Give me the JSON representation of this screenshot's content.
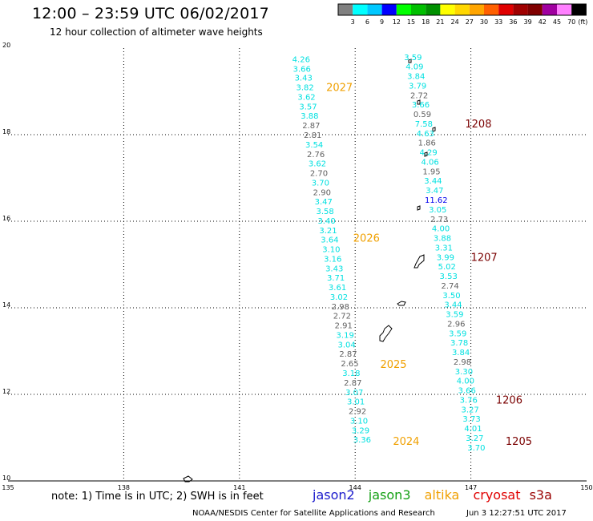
{
  "title": "12:00 – 23:59 UTC 06/02/2017",
  "subtitle": "12 hour collection of altimeter wave heights",
  "note": "note:  1) Time is in UTC; 2) SWH is in feet",
  "credit": "NOAA/NESDIS Center for Satellite Applications and Research",
  "generated": "Jun  3 12:27:51 UTC 2017",
  "satellites": [
    {
      "name": "jason2",
      "color": "#1a1acc"
    },
    {
      "name": "jason3",
      "color": "#14a014"
    },
    {
      "name": "altika",
      "color": "#f0a000"
    },
    {
      "name": "cryosat",
      "color": "#e00000"
    },
    {
      "name": "s3a",
      "color": "#990000"
    }
  ],
  "color_scale": {
    "unit": "(ft)",
    "labels": [
      "3",
      "6",
      "9",
      "12",
      "15",
      "18",
      "21",
      "24",
      "27",
      "30",
      "33",
      "36",
      "39",
      "42",
      "45",
      "70"
    ],
    "colors": [
      "#808080",
      "#00ffff",
      "#00c8ff",
      "#0000ff",
      "#00ff00",
      "#00c000",
      "#009000",
      "#ffff00",
      "#ffd700",
      "#ffa500",
      "#ff6000",
      "#e00000",
      "#a00000",
      "#800000",
      "#a000a0",
      "#ff80ff",
      "#000000"
    ]
  },
  "axes": {
    "lon_ticks": [
      "135",
      "138",
      "141",
      "144",
      "147",
      "150"
    ],
    "lat_ticks": [
      "20",
      "18",
      "16",
      "14",
      "12",
      "10"
    ],
    "lon_range": [
      135,
      150
    ],
    "lat_range": [
      10,
      20
    ]
  },
  "tracks": [
    {
      "id": "track-west",
      "points": [
        {
          "lon": 142.6,
          "lat": 19.75,
          "v": "4.26",
          "c": "#00e0e0"
        },
        {
          "lon": 142.62,
          "lat": 19.53,
          "v": "3.66",
          "c": "#00e0e0"
        },
        {
          "lon": 142.66,
          "lat": 19.32,
          "v": "3.43",
          "c": "#00e0e0"
        },
        {
          "lon": 142.7,
          "lat": 19.1,
          "v": "3.82",
          "c": "#00e0e0"
        },
        {
          "lon": 142.74,
          "lat": 18.88,
          "v": "3.62",
          "c": "#00e0e0"
        },
        {
          "lon": 142.78,
          "lat": 18.66,
          "v": "3.57",
          "c": "#00e0e0"
        },
        {
          "lon": 142.82,
          "lat": 18.44,
          "v": "3.88",
          "c": "#00e0e0"
        },
        {
          "lon": 142.86,
          "lat": 18.22,
          "v": "2.87",
          "c": "#606060"
        },
        {
          "lon": 142.9,
          "lat": 18.0,
          "v": "2.81",
          "c": "#606060"
        },
        {
          "lon": 142.94,
          "lat": 17.78,
          "v": "3.54",
          "c": "#00e0e0"
        },
        {
          "lon": 142.98,
          "lat": 17.56,
          "v": "2.76",
          "c": "#606060"
        },
        {
          "lon": 143.02,
          "lat": 17.34,
          "v": "3.62",
          "c": "#00e0e0"
        },
        {
          "lon": 143.06,
          "lat": 17.12,
          "v": "2.70",
          "c": "#606060"
        },
        {
          "lon": 143.1,
          "lat": 16.9,
          "v": "3.70",
          "c": "#00e0e0"
        },
        {
          "lon": 143.14,
          "lat": 16.68,
          "v": "2.90",
          "c": "#606060"
        },
        {
          "lon": 143.18,
          "lat": 16.46,
          "v": "3.47",
          "c": "#00e0e0"
        },
        {
          "lon": 143.22,
          "lat": 16.24,
          "v": "3.58",
          "c": "#00e0e0"
        },
        {
          "lon": 143.26,
          "lat": 16.02,
          "v": "3.40",
          "c": "#00e0e0"
        },
        {
          "lon": 143.3,
          "lat": 15.8,
          "v": "3.21",
          "c": "#00e0e0"
        },
        {
          "lon": 143.34,
          "lat": 15.58,
          "v": "3.64",
          "c": "#00e0e0"
        },
        {
          "lon": 143.38,
          "lat": 15.36,
          "v": "3.10",
          "c": "#00e0e0"
        },
        {
          "lon": 143.42,
          "lat": 15.14,
          "v": "3.16",
          "c": "#00e0e0"
        },
        {
          "lon": 143.46,
          "lat": 14.92,
          "v": "3.43",
          "c": "#00e0e0"
        },
        {
          "lon": 143.5,
          "lat": 14.7,
          "v": "3.71",
          "c": "#00e0e0"
        },
        {
          "lon": 143.54,
          "lat": 14.48,
          "v": "3.61",
          "c": "#00e0e0"
        },
        {
          "lon": 143.58,
          "lat": 14.26,
          "v": "3.02",
          "c": "#00e0e0"
        },
        {
          "lon": 143.62,
          "lat": 14.04,
          "v": "2.98",
          "c": "#606060"
        },
        {
          "lon": 143.66,
          "lat": 13.82,
          "v": "2.72",
          "c": "#606060"
        },
        {
          "lon": 143.7,
          "lat": 13.6,
          "v": "2.91",
          "c": "#606060"
        },
        {
          "lon": 143.74,
          "lat": 13.38,
          "v": "3.19",
          "c": "#00e0e0"
        },
        {
          "lon": 143.78,
          "lat": 13.16,
          "v": "3.04",
          "c": "#00e0e0"
        },
        {
          "lon": 143.82,
          "lat": 12.94,
          "v": "2.87",
          "c": "#606060"
        },
        {
          "lon": 143.86,
          "lat": 12.72,
          "v": "2.65",
          "c": "#606060"
        },
        {
          "lon": 143.9,
          "lat": 12.5,
          "v": "3.18",
          "c": "#00e0e0"
        },
        {
          "lon": 143.94,
          "lat": 12.28,
          "v": "2.87",
          "c": "#606060"
        },
        {
          "lon": 143.98,
          "lat": 12.06,
          "v": "3.07",
          "c": "#00e0e0"
        },
        {
          "lon": 144.02,
          "lat": 11.84,
          "v": "3.01",
          "c": "#00e0e0"
        },
        {
          "lon": 144.06,
          "lat": 11.62,
          "v": "2.92",
          "c": "#606060"
        },
        {
          "lon": 144.1,
          "lat": 11.4,
          "v": "3.10",
          "c": "#00e0e0"
        },
        {
          "lon": 144.14,
          "lat": 11.18,
          "v": "3.29",
          "c": "#00e0e0"
        },
        {
          "lon": 144.18,
          "lat": 10.96,
          "v": "3.36",
          "c": "#00e0e0"
        }
      ],
      "time_labels": [
        {
          "lon": 143.25,
          "lat": 19.1,
          "text": "2027",
          "c": "#f0a000"
        },
        {
          "lon": 143.95,
          "lat": 15.62,
          "text": "2026",
          "c": "#f0a000"
        },
        {
          "lon": 144.65,
          "lat": 12.7,
          "text": "2025",
          "c": "#f0a000"
        },
        {
          "lon": 144.98,
          "lat": 10.93,
          "text": "2024",
          "c": "#f0a000"
        }
      ]
    },
    {
      "id": "track-east",
      "points": [
        {
          "lon": 145.5,
          "lat": 19.8,
          "v": "3.59",
          "c": "#00e0e0"
        },
        {
          "lon": 145.54,
          "lat": 19.58,
          "v": "4.09",
          "c": "#00e0e0"
        },
        {
          "lon": 145.58,
          "lat": 19.36,
          "v": "3.84",
          "c": "#00e0e0"
        },
        {
          "lon": 145.62,
          "lat": 19.14,
          "v": "3.79",
          "c": "#00e0e0"
        },
        {
          "lon": 145.66,
          "lat": 18.92,
          "v": "2.72",
          "c": "#606060"
        },
        {
          "lon": 145.7,
          "lat": 18.7,
          "v": "3.66",
          "c": "#00e0e0"
        },
        {
          "lon": 145.74,
          "lat": 18.48,
          "v": "0.59",
          "c": "#606060"
        },
        {
          "lon": 145.78,
          "lat": 18.26,
          "v": "7.58",
          "c": "#00e0e0"
        },
        {
          "lon": 145.82,
          "lat": 18.04,
          "v": "4.63",
          "c": "#00e0e0"
        },
        {
          "lon": 145.86,
          "lat": 17.82,
          "v": "1.86",
          "c": "#606060"
        },
        {
          "lon": 145.9,
          "lat": 17.6,
          "v": "4.29",
          "c": "#00e0e0"
        },
        {
          "lon": 145.94,
          "lat": 17.38,
          "v": "4.06",
          "c": "#00e0e0"
        },
        {
          "lon": 145.98,
          "lat": 17.16,
          "v": "1.95",
          "c": "#606060"
        },
        {
          "lon": 146.02,
          "lat": 16.94,
          "v": "3.44",
          "c": "#00e0e0"
        },
        {
          "lon": 146.06,
          "lat": 16.72,
          "v": "3.47",
          "c": "#00e0e0"
        },
        {
          "lon": 146.1,
          "lat": 16.5,
          "v": "11.62",
          "c": "#0000ee"
        },
        {
          "lon": 146.14,
          "lat": 16.28,
          "v": "3.05",
          "c": "#00e0e0"
        },
        {
          "lon": 146.18,
          "lat": 16.06,
          "v": "2.73",
          "c": "#606060"
        },
        {
          "lon": 146.22,
          "lat": 15.84,
          "v": "4.00",
          "c": "#00e0e0"
        },
        {
          "lon": 146.26,
          "lat": 15.62,
          "v": "3.88",
          "c": "#00e0e0"
        },
        {
          "lon": 146.3,
          "lat": 15.4,
          "v": "3.31",
          "c": "#00e0e0"
        },
        {
          "lon": 146.34,
          "lat": 15.18,
          "v": "3.99",
          "c": "#00e0e0"
        },
        {
          "lon": 146.38,
          "lat": 14.96,
          "v": "5.02",
          "c": "#00e0e0"
        },
        {
          "lon": 146.42,
          "lat": 14.74,
          "v": "3.53",
          "c": "#00e0e0"
        },
        {
          "lon": 146.46,
          "lat": 14.52,
          "v": "2.74",
          "c": "#606060"
        },
        {
          "lon": 146.5,
          "lat": 14.3,
          "v": "3.50",
          "c": "#00e0e0"
        },
        {
          "lon": 146.54,
          "lat": 14.08,
          "v": "3.44",
          "c": "#00e0e0"
        },
        {
          "lon": 146.58,
          "lat": 13.86,
          "v": "3.59",
          "c": "#00e0e0"
        },
        {
          "lon": 146.62,
          "lat": 13.64,
          "v": "2.96",
          "c": "#606060"
        },
        {
          "lon": 146.66,
          "lat": 13.42,
          "v": "3.59",
          "c": "#00e0e0"
        },
        {
          "lon": 146.7,
          "lat": 13.2,
          "v": "3.78",
          "c": "#00e0e0"
        },
        {
          "lon": 146.74,
          "lat": 12.98,
          "v": "3.84",
          "c": "#00e0e0"
        },
        {
          "lon": 146.78,
          "lat": 12.76,
          "v": "2.98",
          "c": "#606060"
        },
        {
          "lon": 146.82,
          "lat": 12.54,
          "v": "3.30",
          "c": "#00e0e0"
        },
        {
          "lon": 146.86,
          "lat": 12.32,
          "v": "4.00",
          "c": "#00e0e0"
        },
        {
          "lon": 146.9,
          "lat": 12.1,
          "v": "3.66",
          "c": "#00e0e0"
        },
        {
          "lon": 146.94,
          "lat": 11.88,
          "v": "3.76",
          "c": "#00e0e0"
        },
        {
          "lon": 146.98,
          "lat": 11.66,
          "v": "3.27",
          "c": "#00e0e0"
        },
        {
          "lon": 147.02,
          "lat": 11.44,
          "v": "3.73",
          "c": "#00e0e0"
        },
        {
          "lon": 147.06,
          "lat": 11.22,
          "v": "4.01",
          "c": "#00e0e0"
        },
        {
          "lon": 147.1,
          "lat": 11.0,
          "v": "3.27",
          "c": "#00e0e0"
        },
        {
          "lon": 147.14,
          "lat": 10.78,
          "v": "3.70",
          "c": "#00e0e0"
        }
      ],
      "time_labels": [
        {
          "lon": 146.85,
          "lat": 18.26,
          "text": "1208",
          "c": "#7a0000"
        },
        {
          "lon": 147.0,
          "lat": 15.18,
          "text": "1207",
          "c": "#7a0000"
        },
        {
          "lon": 147.65,
          "lat": 11.88,
          "text": "1206",
          "c": "#7a0000"
        },
        {
          "lon": 147.9,
          "lat": 10.93,
          "text": "1205",
          "c": "#7a0000"
        }
      ]
    }
  ]
}
